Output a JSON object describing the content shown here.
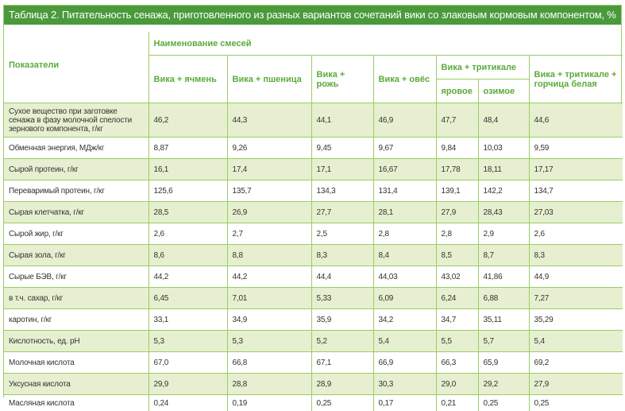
{
  "title": "Таблица 2. Питательность сенажа, приготовленного из разных вариантов сочетаний вики со злаковым кормовым компонентом, % на сухое вещество",
  "header": {
    "indicator": "Показатели",
    "group": "Наименование смесей",
    "mixes": [
      "Вика + ячмень",
      "Вика + пшеница",
      "Вика + рожь",
      "Вика + овёс"
    ],
    "triticale": "Вика + тритикале",
    "triticale_sub": [
      "яровое",
      "озимое"
    ],
    "last": "Вика + тритикале + горчица белая"
  },
  "rows": [
    {
      "label": "Сухое вещество при заготовке сенажа в фазу молочной спелости зернового компонента, г/кг",
      "values": [
        "46,2",
        "44,3",
        "44,1",
        "46,9",
        "47,7",
        "48,4",
        "44,6"
      ]
    },
    {
      "label": "Обменная энергия, МДж/кг",
      "values": [
        "8,87",
        "9,26",
        "9,45",
        "9,67",
        "9,84",
        "10,03",
        "9,59"
      ]
    },
    {
      "label": "Сырой протеин, г/кг",
      "values": [
        "16,1",
        "17,4",
        "17,1",
        "16,67",
        "17,78",
        "18,11",
        "17,17"
      ]
    },
    {
      "label": "Переваримый протеин, г/кг",
      "values": [
        "125,6",
        "135,7",
        "134,3",
        "131,4",
        "139,1",
        "142,2",
        "134,7"
      ]
    },
    {
      "label": "Сырая клетчатка, г/кг",
      "values": [
        "28,5",
        "26,9",
        "27,7",
        "28,1",
        "27,9",
        "28,43",
        "27,03"
      ]
    },
    {
      "label": "Сырой жир, г/кг",
      "values": [
        "2,6",
        "2,7",
        "2,5",
        "2,8",
        "2,8",
        "2,9",
        "2,6"
      ]
    },
    {
      "label": "Сырая зола, г/кг",
      "values": [
        "8,6",
        "8,8",
        "8,3",
        "8,4",
        "8,5",
        "8,7",
        "8,3"
      ]
    },
    {
      "label": "Сырые БЭВ, г/кг",
      "values": [
        "44,2",
        "44,2",
        "44,4",
        "44,03",
        "43,02",
        "41,86",
        "44,9"
      ]
    },
    {
      "label": "в т.ч. сахар, г/кг",
      "values": [
        "6,45",
        "7,01",
        "5,33",
        "6,09",
        "6,24",
        "6,88",
        "7,27"
      ]
    },
    {
      "label": "каротин, г/кг",
      "values": [
        "33,1",
        "34,9",
        "35,9",
        "34,2",
        "34,7",
        "35,11",
        "35,29"
      ]
    },
    {
      "label": "Кислотность, ед. рН",
      "values": [
        "5,3",
        "5,3",
        "5,2",
        "5,4",
        "5,5",
        "5,7",
        "5,4"
      ]
    },
    {
      "label": "Молочная кислота",
      "values": [
        "67,0",
        "66,8",
        "67,1",
        "66,9",
        "66,3",
        "65,9",
        "69,2"
      ]
    },
    {
      "label": "Уксусная кислота",
      "values": [
        "29,9",
        "28,8",
        "28,9",
        "30,3",
        "29,0",
        "29,2",
        "27,9"
      ]
    },
    {
      "label": "Масляная кислота",
      "values": [
        "0,24",
        "0,19",
        "0,25",
        "0,17",
        "0,21",
        "0,25",
        "0,25"
      ]
    }
  ]
}
